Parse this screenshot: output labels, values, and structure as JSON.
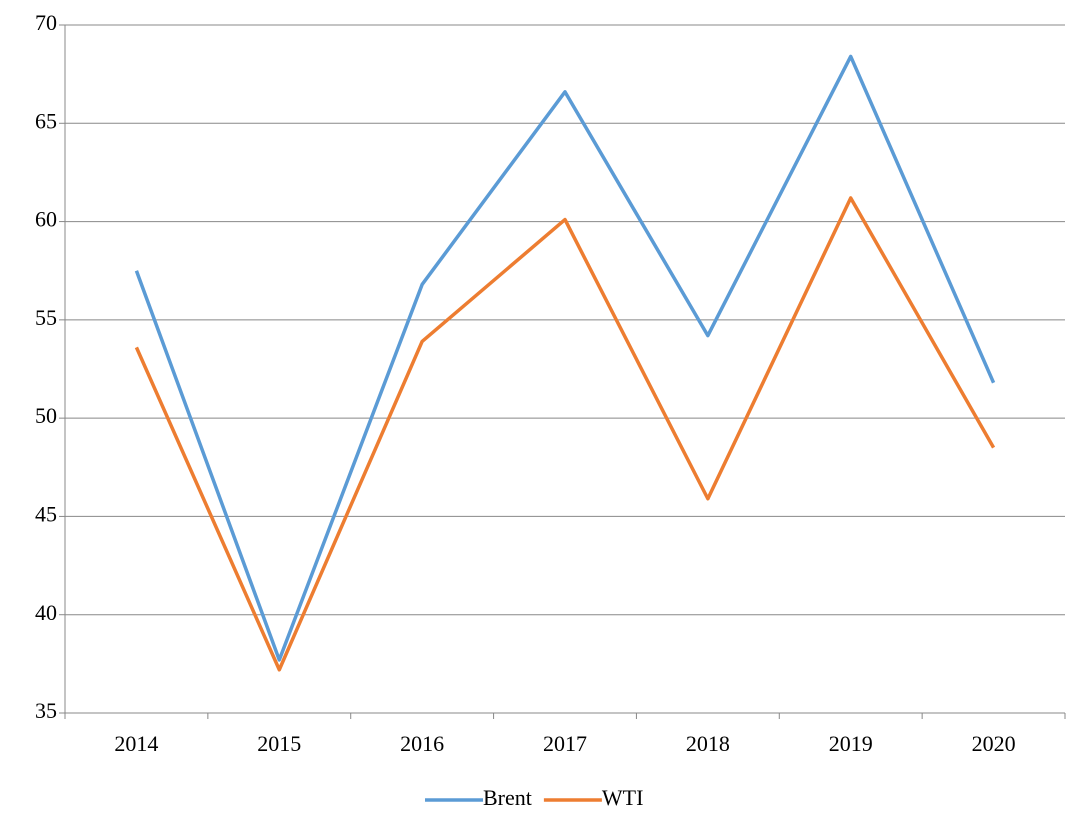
{
  "chart_data": {
    "type": "line",
    "categories": [
      "2014",
      "2015",
      "2016",
      "2017",
      "2018",
      "2019",
      "2020"
    ],
    "series": [
      {
        "name": "Brent",
        "color": "#5b9bd5",
        "values": [
          57.5,
          37.7,
          56.8,
          66.6,
          54.2,
          68.4,
          51.8
        ]
      },
      {
        "name": "WTI",
        "color": "#ed7d31",
        "values": [
          53.6,
          37.2,
          53.9,
          60.1,
          45.9,
          61.2,
          48.5
        ]
      }
    ],
    "ylim": [
      35,
      70
    ],
    "yticks": [
      35,
      40,
      45,
      50,
      55,
      60,
      65,
      70
    ],
    "grid": true,
    "legend": "bottom"
  }
}
